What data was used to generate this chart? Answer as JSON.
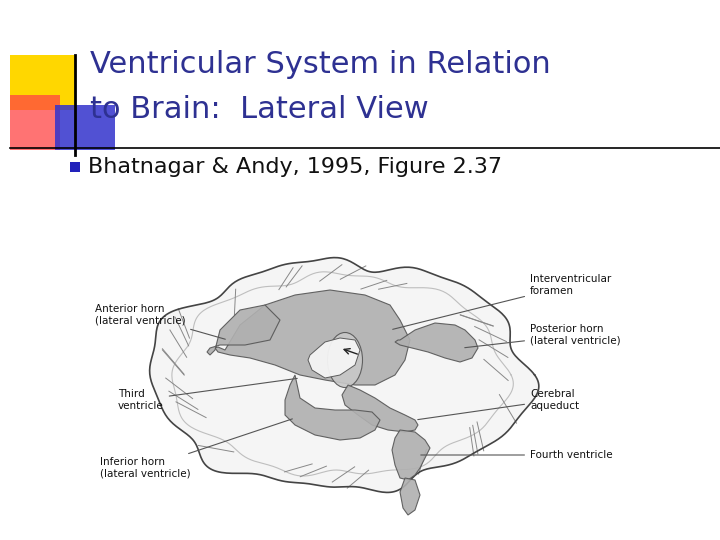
{
  "title_line1": "Ventricular System in Relation",
  "title_line2": "to Brain:  Lateral View",
  "title_color": "#2E3192",
  "title_fontsize": 22,
  "bullet_text": "Bhatnagar & Andy, 1995, Figure 2.37",
  "bullet_color": "#111111",
  "bullet_fontsize": 16,
  "bg_color": "#ffffff",
  "line_color": "#888888",
  "label_fontsize": 7.5
}
